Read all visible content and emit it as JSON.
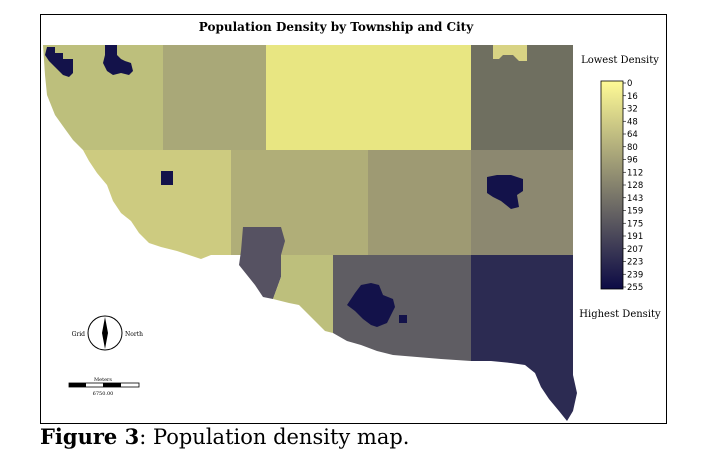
{
  "map": {
    "title": "Population Density by Township and City",
    "legend": {
      "top_label": "Lowest Density",
      "bottom_label": "Highest Density",
      "ticks": [
        "0",
        "16",
        "32",
        "48",
        "64",
        "80",
        "96",
        "112",
        "128",
        "143",
        "159",
        "175",
        "191",
        "207",
        "223",
        "239",
        "255"
      ],
      "ramp_colors": [
        "#fffb96",
        "#0c0a45"
      ]
    },
    "compass": {
      "left_label": "Grid",
      "right_label": "North"
    },
    "scalebar": {
      "top_label": "Meters",
      "bottom_label": "6750.00"
    },
    "colors": {
      "city": "#13124a",
      "region_a": "#bdbf7c",
      "region_b": "#a9a878",
      "region_c": "#e8e682",
      "region_d": "#6f6f60",
      "region_e": "#cdcb80",
      "region_f": "#b0ae78",
      "region_g": "#9e9a73",
      "region_h": "#8c8870",
      "region_i": "#565262",
      "region_j": "#5f5d63",
      "region_k": "#2c2b52",
      "region_l": "#d8d384"
    }
  },
  "caption": {
    "label": "Figure 3",
    "text": ": Population density map."
  }
}
